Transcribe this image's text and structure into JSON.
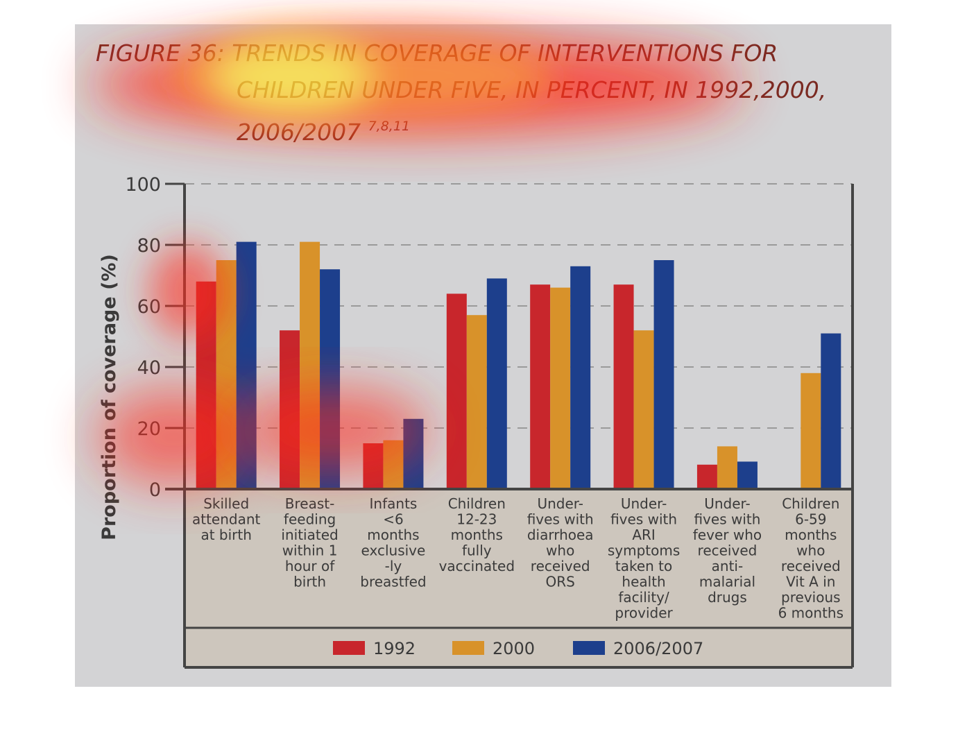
{
  "caption": {
    "line1": "FIGURE 36: TRENDS IN COVERAGE OF INTERVENTIONS FOR",
    "line2": "CHILDREN UNDER FIVE, IN PERCENT, IN 1992,2000,",
    "line3": "2006/2007",
    "refs": "7,8,11"
  },
  "chart_data": {
    "type": "bar",
    "ylabel": "Proportion of coverage (%)",
    "ylim": [
      0,
      100
    ],
    "yticks": [
      0,
      20,
      40,
      60,
      80,
      100
    ],
    "grid": "dashed horizontal",
    "legend_position": "bottom",
    "categories": [
      [
        "Skilled",
        "attendant",
        "at birth"
      ],
      [
        "Breast-",
        "feeding",
        "initiated",
        "within 1",
        "hour of",
        "birth"
      ],
      [
        "Infants",
        "<6",
        "months",
        "exclusive",
        "-ly",
        "breastfed"
      ],
      [
        "Children",
        "12-23",
        "months",
        "fully",
        "vaccinated"
      ],
      [
        "Under-",
        "fives with",
        "diarrhoea",
        "who",
        "received",
        "ORS"
      ],
      [
        "Under-",
        "fives with",
        "ARI",
        "symptoms",
        "taken to",
        "health",
        "facility/",
        "provider"
      ],
      [
        "Under-",
        "fives with",
        "fever who",
        "received",
        "anti-",
        "malarial",
        "drugs"
      ],
      [
        "Children",
        "6-59",
        "months",
        "who",
        "received",
        "Vit A in",
        "previous",
        "6 months"
      ]
    ],
    "series": [
      {
        "name": "1992",
        "color": "#c8262c",
        "values": [
          68,
          52,
          15,
          64,
          67,
          67,
          8,
          null
        ]
      },
      {
        "name": "2000",
        "color": "#d8922a",
        "values": [
          75,
          81,
          16,
          57,
          66,
          52,
          14,
          38
        ]
      },
      {
        "name": "2006/2007",
        "color": "#1d3f8c",
        "values": [
          81,
          72,
          23,
          69,
          73,
          75,
          9,
          51
        ]
      }
    ]
  }
}
